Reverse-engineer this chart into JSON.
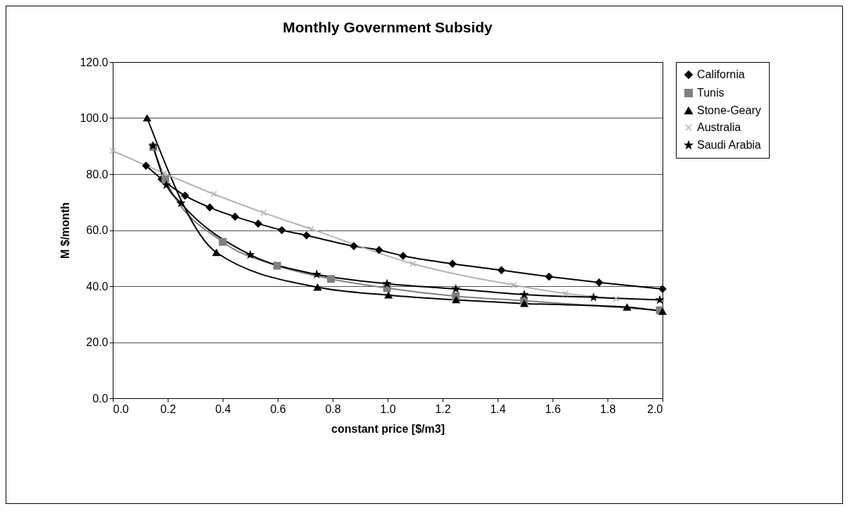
{
  "chart_data": {
    "type": "line",
    "title": "Monthly Government Subsidy",
    "xlabel": "constant price [$/m3]",
    "ylabel": "M $/month",
    "xlim": [
      0,
      2
    ],
    "xticks": [
      {
        "value": 0,
        "label": "0.0"
      },
      {
        "value": 0.2,
        "label": "0.2"
      },
      {
        "value": 0.4,
        "label": "0.4"
      },
      {
        "value": 0.6,
        "label": "0.6"
      },
      {
        "value": 0.8,
        "label": "0.8"
      },
      {
        "value": 1,
        "label": "1.0"
      },
      {
        "value": 1.2,
        "label": "1.2"
      },
      {
        "value": 1.4,
        "label": "1.4"
      },
      {
        "value": 1.6,
        "label": "1.6"
      },
      {
        "value": 1.8,
        "label": "1.8"
      },
      {
        "value": 2,
        "label": "2.0"
      }
    ],
    "ylim": [
      0,
      120
    ],
    "yticks": [
      {
        "value": 0,
        "label": "0.0"
      },
      {
        "value": 20,
        "label": "20.0"
      },
      {
        "value": 40,
        "label": "40.0"
      },
      {
        "value": 60,
        "label": "60.0"
      },
      {
        "value": 80,
        "label": "80.0"
      },
      {
        "value": 100,
        "label": "100.0"
      },
      {
        "value": 120,
        "label": "120.0"
      }
    ],
    "grid": "y",
    "legend": "right",
    "series": [
      {
        "name": "California",
        "color": "#000000",
        "marker": "diamond",
        "x": [
          0.121,
          0.178,
          0.263,
          0.353,
          0.445,
          0.529,
          0.615,
          0.705,
          0.877,
          0.969,
          1.056,
          1.236,
          1.414,
          1.587,
          1.769,
          2.0
        ],
        "values": [
          83,
          78.2,
          72.3,
          68.1,
          64.8,
          62.3,
          60,
          58.1,
          54.3,
          52.9,
          50.8,
          48,
          45.7,
          43.4,
          41.3,
          39
        ]
      },
      {
        "name": "Tunis",
        "color": "#7f7f7f",
        "marker": "square",
        "x": [
          0.148,
          0.191,
          0.4,
          0.598,
          0.794,
          0.998,
          1.248,
          1.496,
          1.99
        ],
        "values": [
          89.7,
          78.2,
          55.8,
          47.3,
          42.6,
          39.3,
          36.4,
          34.8,
          31.4
        ]
      },
      {
        "name": "Stone-Geary",
        "color": "#000000",
        "marker": "triangle",
        "x": [
          0.125,
          0.377,
          0.745,
          1.003,
          1.249,
          1.497,
          1.871,
          2.0
        ],
        "values": [
          100,
          52,
          39.6,
          36.8,
          35.1,
          33.8,
          32.5,
          31
        ]
      },
      {
        "name": "Australia",
        "color": "#b4b4b4",
        "marker": "cross",
        "x": [
          0.0,
          0.187,
          0.367,
          0.549,
          0.721,
          1.092,
          1.459,
          1.647,
          1.831
        ],
        "values": [
          88.3,
          80.3,
          72.9,
          66.2,
          60.4,
          48,
          40.4,
          37.4,
          35.5
        ]
      },
      {
        "name": "Saudi Arabia",
        "color": "#000000",
        "marker": "star",
        "x": [
          0.146,
          0.195,
          0.248,
          0.5,
          0.742,
          0.998,
          1.248,
          1.497,
          1.749,
          1.99
        ],
        "values": [
          90.1,
          76.1,
          69.6,
          51.2,
          44.2,
          40.9,
          39,
          37,
          36,
          35.1
        ]
      }
    ]
  }
}
